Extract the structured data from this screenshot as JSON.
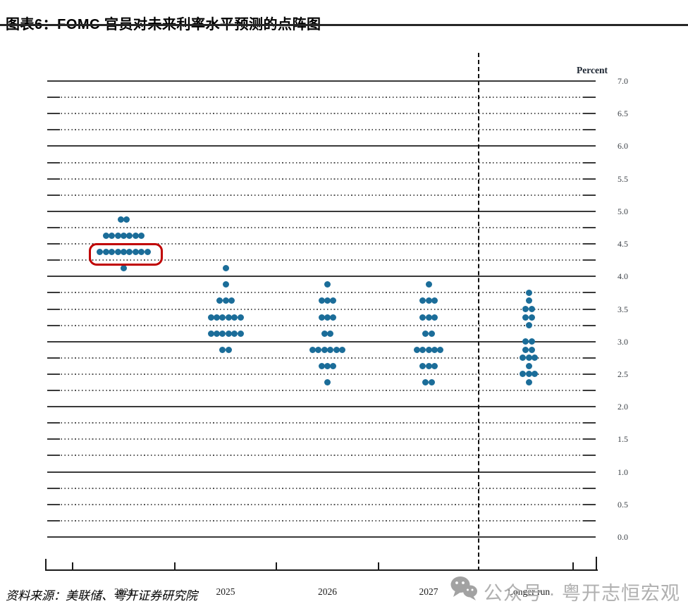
{
  "figure": {
    "title": "图表6：FOMC 官员对未来利率水平预测的点阵图",
    "source": "资料来源：美联储、粤开证券研究院",
    "watermark": "公众号 · 粤开志恒宏观"
  },
  "chart_data": {
    "type": "scatter",
    "subtype": "fomc-dot-plot",
    "title": "FOMC 官员对未来利率水平预测的点阵图",
    "ylabel": "Percent",
    "xlabel": "",
    "ylim": [
      0.0,
      7.0
    ],
    "grid": "dotted every 0.25, solid at whole percents, labels every 0.5",
    "legend": "none",
    "y_tick_labels": [
      "7.0",
      "6.5",
      "6.0",
      "5.5",
      "5.0",
      "4.5",
      "4.0",
      "3.5",
      "3.0",
      "2.5",
      "2.0",
      "1.5",
      "1.0",
      "0.5",
      "0.0"
    ],
    "categories": [
      "2024",
      "2025",
      "2026",
      "2027",
      "Longer run"
    ],
    "separator_before_last_category": true,
    "series": [
      {
        "name": "2024",
        "dots": [
          {
            "rate": 4.875,
            "count": 2
          },
          {
            "rate": 4.625,
            "count": 7
          },
          {
            "rate": 4.375,
            "count": 9
          },
          {
            "rate": 4.125,
            "count": 1
          }
        ]
      },
      {
        "name": "2025",
        "dots": [
          {
            "rate": 4.125,
            "count": 1
          },
          {
            "rate": 3.875,
            "count": 1
          },
          {
            "rate": 3.625,
            "count": 3
          },
          {
            "rate": 3.375,
            "count": 6
          },
          {
            "rate": 3.125,
            "count": 6
          },
          {
            "rate": 2.875,
            "count": 2
          }
        ]
      },
      {
        "name": "2026",
        "dots": [
          {
            "rate": 3.875,
            "count": 1
          },
          {
            "rate": 3.625,
            "count": 3
          },
          {
            "rate": 3.375,
            "count": 3
          },
          {
            "rate": 3.125,
            "count": 2
          },
          {
            "rate": 2.875,
            "count": 6
          },
          {
            "rate": 2.625,
            "count": 3
          },
          {
            "rate": 2.375,
            "count": 1
          }
        ]
      },
      {
        "name": "2027",
        "dots": [
          {
            "rate": 3.875,
            "count": 1
          },
          {
            "rate": 3.625,
            "count": 3
          },
          {
            "rate": 3.375,
            "count": 3
          },
          {
            "rate": 3.125,
            "count": 2
          },
          {
            "rate": 2.875,
            "count": 5
          },
          {
            "rate": 2.625,
            "count": 3
          },
          {
            "rate": 2.375,
            "count": 2
          }
        ]
      },
      {
        "name": "Longer run",
        "dots": [
          {
            "rate": 3.75,
            "count": 1
          },
          {
            "rate": 3.625,
            "count": 1
          },
          {
            "rate": 3.5,
            "count": 2
          },
          {
            "rate": 3.375,
            "count": 2
          },
          {
            "rate": 3.25,
            "count": 1
          },
          {
            "rate": 3.0,
            "count": 2
          },
          {
            "rate": 2.875,
            "count": 2
          },
          {
            "rate": 2.75,
            "count": 3
          },
          {
            "rate": 2.625,
            "count": 1
          },
          {
            "rate": 2.5,
            "count": 3
          },
          {
            "rate": 2.375,
            "count": 1
          }
        ]
      }
    ],
    "highlight": {
      "series": "2024",
      "rate": 4.375,
      "note": "red box around 2024 median row"
    },
    "colors": {
      "dot": "#1b6d99",
      "highlight_box": "#c00000",
      "grid_solid": "#3a3a3a",
      "grid_dotted": "#555555",
      "axis": "#1a1a1a",
      "title_rule": "#262626",
      "watermark": "#b0b0b0"
    }
  }
}
